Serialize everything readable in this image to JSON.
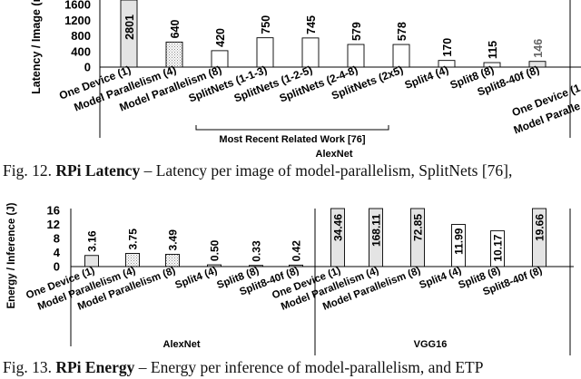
{
  "fig12": {
    "caption_num": "Fig. 12.",
    "caption_bold": "RPi Latency",
    "caption_rest": " – Latency per image of model-parallelism, SplitNets [76],",
    "chart_data": {
      "type": "bar",
      "ylabel": "Latency / Image (ms)",
      "ylim": [
        0,
        1600
      ],
      "yticks": [
        "1600",
        "1200",
        "800",
        "400",
        "0"
      ],
      "group_label": "AlexNet",
      "bracket_label": "Most Recent Related Work [76]",
      "categories": [
        "One Device (1)",
        "Model Parallelism (4)",
        "Model Parallelism (8)",
        "SplitNets (1-1-3)",
        "SplitNets (1-2-5)",
        "SplitNets (2-4-8)",
        "SplitNets (2x5)",
        "Split4 (4)",
        "Split8 (8)",
        "Split8-40f (8)"
      ],
      "values": [
        2801,
        640,
        420,
        750,
        745,
        579,
        578,
        170,
        115,
        146
      ],
      "value_labels": [
        "2801",
        "640",
        "420",
        "750",
        "745",
        "579",
        "578",
        "170",
        "115",
        "146"
      ],
      "next_group_categories": [
        "One Device (1",
        "Model Paralle"
      ]
    }
  },
  "fig13": {
    "caption_num": "Fig. 13.",
    "caption_bold": "RPi Energy",
    "caption_rest": " – Energy per inference of model-parallelism, and ETP",
    "chart_data": {
      "type": "bar",
      "ylabel": "Energy / Inference (J)",
      "ylim": [
        0,
        16
      ],
      "yticks": [
        "16",
        "12",
        "8",
        "4",
        "0"
      ],
      "groups": [
        {
          "name": "AlexNet",
          "categories": [
            "One Device (1)",
            "Model Parallelism (4)",
            "Model Parallelism (8)",
            "Split4 (4)",
            "Split8 (8)",
            "Split8-40f (8)"
          ],
          "values": [
            3.16,
            3.75,
            3.49,
            0.5,
            0.33,
            0.42
          ],
          "value_labels": [
            "3.16",
            "3.75",
            "3.49",
            "0.50",
            "0.33",
            "0.42"
          ]
        },
        {
          "name": "VGG16",
          "categories": [
            "One Device (1)",
            "Model Parallelism (4)",
            "Model Parallelism (8)",
            "Split4 (4)",
            "Split8 (8)",
            "Split8-40f (8)"
          ],
          "values": [
            34.46,
            168.11,
            72.85,
            11.99,
            10.17,
            19.66
          ],
          "value_labels": [
            "34.46",
            "168.11",
            "72.85",
            "11.99",
            "10.17",
            "19.66"
          ]
        }
      ]
    }
  }
}
